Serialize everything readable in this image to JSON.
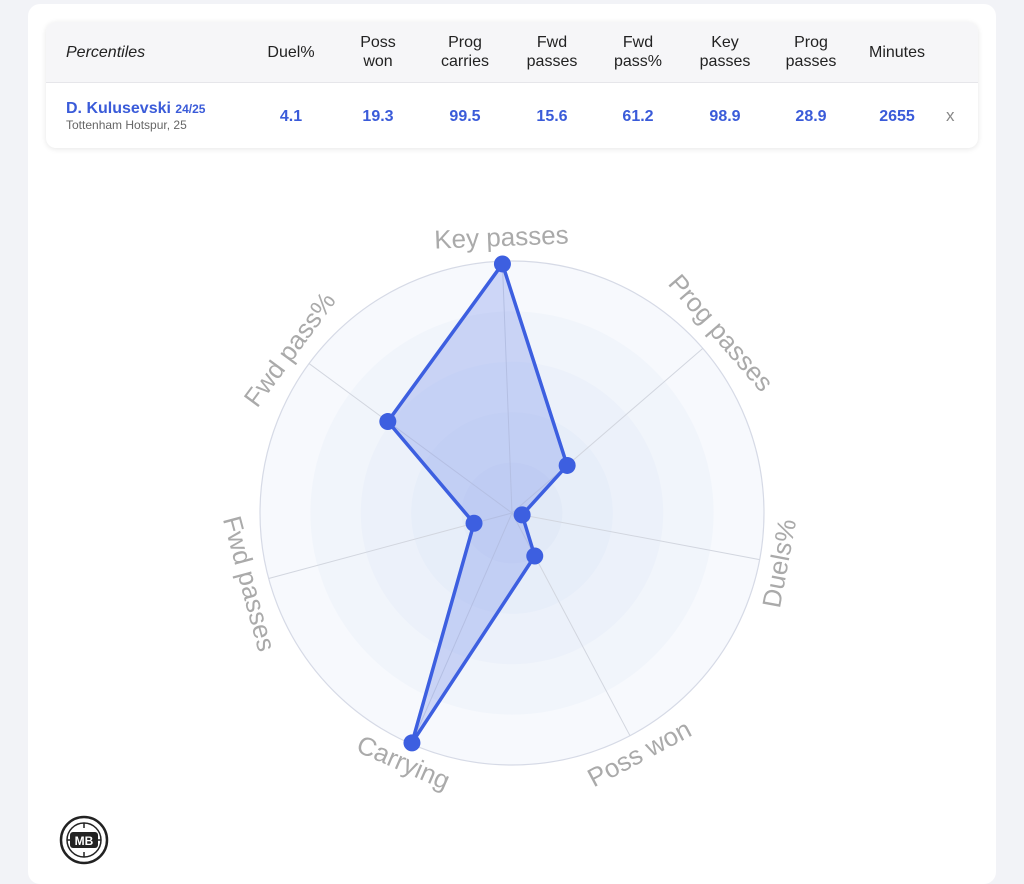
{
  "table": {
    "headers": [
      "Percentiles",
      "Duel%",
      "Poss\nwon",
      "Prog\ncarries",
      "Fwd\npasses",
      "Fwd\npass%",
      "Key\npasses",
      "Prog\npasses",
      "Minutes"
    ],
    "player": {
      "name": "D. Kulusevski",
      "season": "24/25",
      "club": "Tottenham Hotspur, 25",
      "values": [
        "4.1",
        "19.3",
        "99.5",
        "15.6",
        "61.2",
        "98.9",
        "28.9",
        "2655"
      ]
    },
    "remove_label": "x"
  },
  "chart_data": {
    "type": "radar",
    "axes": [
      "Key passes",
      "Prog passes",
      "Duels%",
      "Poss won",
      "Carrying",
      "Fwd passes",
      "Fwd pass%"
    ],
    "values": [
      98.9,
      28.9,
      4.1,
      19.3,
      99.5,
      15.6,
      61.2
    ],
    "range": [
      0,
      100
    ],
    "rings": 5,
    "colors": {
      "line": "#3d5fe0",
      "fill": "#7d95ec",
      "point": "#3d5fe0",
      "label": "#aaaaaa",
      "ring": "#d6dae6"
    }
  },
  "logo": {
    "text": "MB"
  }
}
